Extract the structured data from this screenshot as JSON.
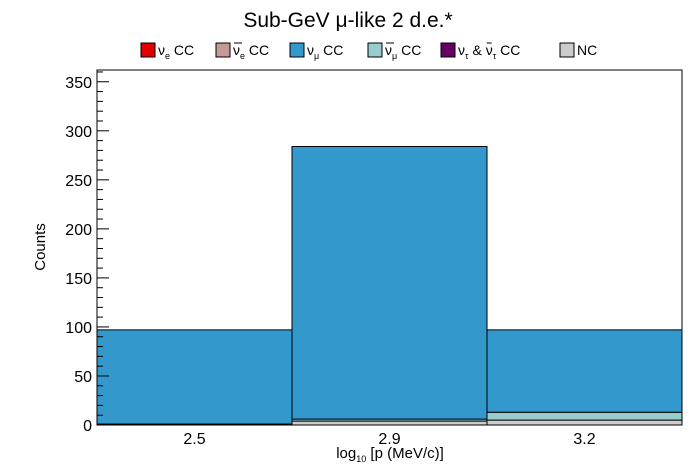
{
  "chart_data": {
    "type": "bar",
    "stacked": true,
    "title": "Sub-GeV μ-like 2 d.e.*",
    "xlabel": "log",
    "xlabel_sub": "10",
    "xlabel_rest": " [p (MeV/c)]",
    "ylabel": "Counts",
    "categories": [
      "2.5",
      "2.9",
      "3.2"
    ],
    "ylim": [
      0,
      362
    ],
    "yticks": [
      0,
      50,
      100,
      150,
      200,
      250,
      300,
      350
    ],
    "legend_position": "top",
    "series": [
      {
        "name": "ν_e CC",
        "color": "#e00000",
        "values": [
          0,
          0,
          0
        ]
      },
      {
        "name": "ν̅_e CC",
        "color": "#c89896",
        "values": [
          0,
          0,
          0
        ]
      },
      {
        "name": "ν_μ CC",
        "color": "#3399cc",
        "values": [
          96,
          278,
          84
        ]
      },
      {
        "name": "ν̅_μ CC",
        "color": "#99cccc",
        "values": [
          0,
          2,
          8
        ]
      },
      {
        "name": "ν_τ & ν̅_τ CC",
        "color": "#660066",
        "values": [
          0,
          0,
          0
        ]
      },
      {
        "name": "NC",
        "color": "#cccccc",
        "values": [
          1,
          4,
          5
        ]
      }
    ],
    "legend": [
      {
        "main": "ν",
        "sub": "e",
        "rest": " CC",
        "bar": false,
        "color": "#e00000"
      },
      {
        "main": "ν",
        "sub": "e",
        "rest": " CC",
        "bar": true,
        "color": "#c89896"
      },
      {
        "main": "ν",
        "sub": "μ",
        "rest": " CC",
        "bar": false,
        "color": "#3399cc"
      },
      {
        "main": "ν",
        "sub": "μ",
        "rest": " CC",
        "bar": true,
        "color": "#99cccc"
      },
      {
        "main": "ν",
        "sub": "τ",
        "rest": " & ",
        "main2": "ν",
        "sub2": "τ",
        "rest2": " CC",
        "bar": false,
        "color": "#660066"
      },
      {
        "main": "NC",
        "sub": "",
        "rest": "",
        "bar": false,
        "color": "#cccccc"
      }
    ]
  }
}
